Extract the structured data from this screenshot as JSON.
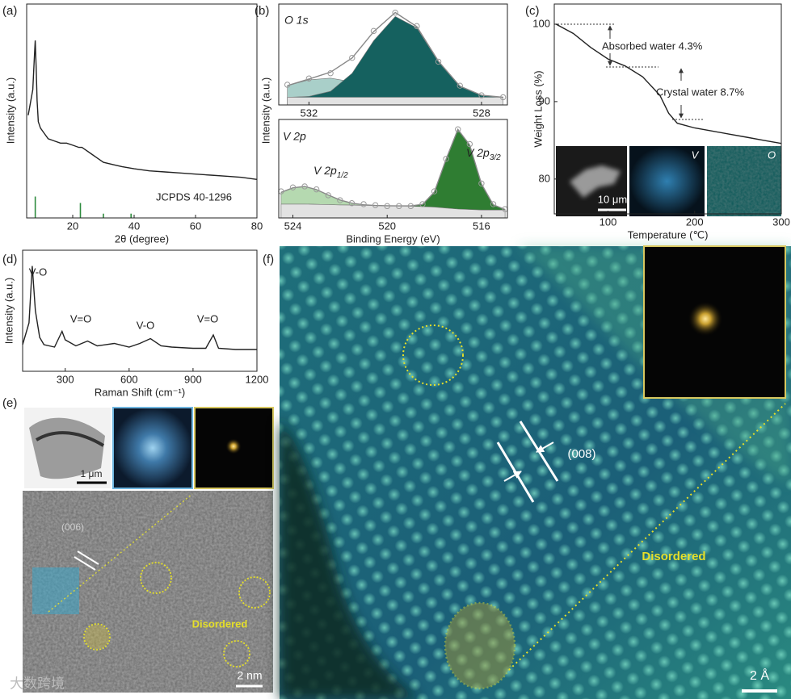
{
  "chart_data": [
    {
      "type": "line",
      "label": "(a)",
      "xlabel": "2θ (degree)",
      "ylabel": "Intensity (a.u.)",
      "x": [
        5.5,
        6,
        7,
        7.5,
        7.8,
        8.1,
        8.4,
        8.8,
        9.5,
        10.5,
        12,
        14,
        16,
        18,
        20,
        22,
        23,
        24,
        26,
        28,
        30,
        33,
        36,
        40,
        45,
        50,
        55,
        60,
        65,
        70,
        75,
        80
      ],
      "series": [
        {
          "kind": "line",
          "color": "#222222",
          "values": [
            48,
            52,
            60,
            75,
            83,
            70,
            55,
            45,
            42,
            40,
            37,
            36,
            35,
            35,
            34,
            33,
            33,
            32,
            30,
            28,
            26,
            25,
            24,
            23,
            22,
            21.5,
            21,
            20.5,
            20,
            19.5,
            19,
            18
          ]
        }
      ],
      "reference": {
        "color": "#2e8b3e",
        "x": [
          7.8,
          22.5,
          30,
          39
        ],
        "values": [
          10,
          7,
          2,
          2
        ]
      },
      "annotations": [
        "JCPDS 40-1296"
      ],
      "xlim": [
        5,
        80
      ],
      "ylim": [
        0,
        100
      ],
      "xticks": [
        20,
        40,
        60,
        80
      ]
    },
    {
      "type": "area",
      "label": "(b)",
      "ylabel": "Intensity (a.u.)",
      "x": [
        532.5,
        532,
        531.5,
        531,
        530.5,
        530,
        529.5,
        529,
        528.5,
        528,
        527.5
      ],
      "series": [
        {
          "kind": "area",
          "color": "#a9cfc9",
          "values": [
            20.1,
            26.1,
            27.9,
            24,
            17.4,
            12.1,
            9.3,
            8.3,
            8,
            8,
            8
          ]
        },
        {
          "kind": "area",
          "color": "#15615f",
          "values": [
            8,
            8.9,
            14.2,
            32.9,
            66.9,
            92.1,
            80.2,
            45.2,
            19.5,
            10.1,
            8
          ]
        },
        {
          "kind": "area",
          "color": "#e2e2e2",
          "values": [
            8,
            8,
            8,
            8,
            8,
            8,
            8,
            8,
            8,
            8,
            8
          ]
        },
        {
          "kind": "line",
          "color": "#888888",
          "values": [
            20.1,
            27,
            34.1,
            48.9,
            76.3,
            96.2,
            81.5,
            45.5,
            19.5,
            10.1,
            8
          ]
        },
        {
          "kind": "points",
          "color": "#9a9a9a",
          "values": [
            21,
            27.5,
            33,
            49,
            77,
            96,
            82,
            45,
            20,
            10,
            8
          ]
        }
      ],
      "annotations": [
        "O 1s"
      ],
      "xlim": [
        532.7,
        527.4
      ],
      "ylim": [
        0,
        105
      ],
      "xticks": [
        532,
        528
      ]
    },
    {
      "type": "area",
      "xlabel": "Binding Energy (eV)",
      "x": [
        524.5,
        524,
        523.5,
        523,
        522.5,
        522,
        521.5,
        521,
        520.5,
        520,
        519.5,
        519,
        518.5,
        518,
        517.5,
        517,
        516.5,
        516,
        515.5,
        515
      ],
      "series": [
        {
          "kind": "area",
          "color": "#b5d9b0",
          "values": [
            26,
            30.6,
            32,
            28.8,
            23.3,
            18.2,
            15,
            13.4,
            12.6,
            12.4,
            12.2,
            12,
            11.5,
            11,
            10,
            9,
            8.5,
            8,
            8,
            8
          ]
        },
        {
          "kind": "area",
          "color": "#2f7d32",
          "values": [
            14,
            14,
            14,
            13.8,
            13.5,
            13.2,
            13,
            12.8,
            12.6,
            12.4,
            12.2,
            12.2,
            13.8,
            26.3,
            59.7,
            89.9,
            74.1,
            34.6,
            13.4,
            8.6
          ]
        },
        {
          "kind": "area",
          "color": "#e2e2e2",
          "values": [
            14,
            14,
            14,
            13.8,
            13.5,
            13.2,
            13,
            12.8,
            12.6,
            12.4,
            12.2,
            12,
            11.5,
            11,
            10,
            9,
            8.5,
            8,
            8,
            8
          ]
        },
        {
          "kind": "line",
          "color": "#888888",
          "values": [
            26,
            30.6,
            32,
            28.8,
            23.3,
            18.2,
            15,
            13.4,
            12.6,
            12.4,
            12.2,
            12.2,
            13.8,
            26.3,
            59.7,
            89.9,
            74.1,
            34.6,
            13.4,
            8.6
          ]
        },
        {
          "kind": "points",
          "color": "#9a9a9a",
          "values": [
            27,
            31,
            32,
            29,
            23,
            18,
            15,
            14,
            13,
            12,
            12,
            12,
            14,
            27,
            60,
            90,
            75,
            35,
            14,
            9
          ]
        }
      ],
      "annotations": [
        "V 2p",
        {
          "text": "V 2p",
          "sub": "1/2"
        },
        {
          "text": "V 2p",
          "sub": "3/2"
        }
      ],
      "xlim": [
        524.6,
        514.9
      ],
      "ylim": [
        0,
        100
      ],
      "xticks": [
        524,
        520,
        516
      ]
    },
    {
      "type": "line",
      "label": "(c)",
      "xlabel": "Temperature (℃)",
      "ylabel": "Weight Loss (%)",
      "x": [
        40,
        60,
        80,
        100,
        120,
        140,
        160,
        170,
        180,
        200,
        220,
        240,
        260,
        280,
        300
      ],
      "series": [
        {
          "kind": "line",
          "color": "#222222",
          "values": [
            100,
            98.8,
            97,
            95.5,
            94.6,
            93.2,
            90.8,
            88.5,
            87.2,
            86.6,
            86.2,
            85.8,
            85.4,
            85,
            84.6
          ]
        }
      ],
      "annotations": [
        "Absorbed water 4.3%",
        "Crystal water 8.7%"
      ],
      "inset_labels": [
        "10 μm",
        "V",
        "O"
      ],
      "xlim": [
        38,
        300
      ],
      "ylim": [
        75.5,
        102.6
      ],
      "xticks": [
        100,
        200,
        300
      ],
      "yticks": [
        80,
        90,
        100
      ]
    },
    {
      "type": "line",
      "label": "(d)",
      "xlabel": "Raman Shift (cm⁻¹)",
      "ylabel": "Intensity (a.u.)",
      "x": [
        100,
        130,
        145,
        160,
        180,
        200,
        250,
        285,
        300,
        350,
        405,
        450,
        530,
        600,
        650,
        700,
        750,
        800,
        900,
        960,
        995,
        1020,
        1100,
        1200
      ],
      "series": [
        {
          "kind": "line",
          "color": "#222222",
          "values": [
            22,
            40,
            87,
            50,
            28,
            22,
            20,
            33,
            26,
            21,
            25,
            21,
            23,
            20,
            23,
            27,
            21,
            20,
            19,
            19,
            30,
            19,
            18,
            18
          ]
        }
      ],
      "annotations": [
        "V-O",
        "V=O",
        "V-O",
        "V=O"
      ],
      "xlim": [
        100,
        1200
      ],
      "ylim": [
        0,
        100
      ],
      "xticks": [
        300,
        600,
        900,
        1200
      ]
    }
  ],
  "images": {
    "e": {
      "label": "(e)",
      "inset_scale_bar": "1 μm",
      "plane": "(006)",
      "region": "Disordered",
      "scale_bar": "2 nm"
    },
    "f": {
      "label": "(f)",
      "plane": "(008)",
      "region": "Disordered",
      "scale_bar": "2 Å"
    }
  },
  "watermark": "大数跨境"
}
